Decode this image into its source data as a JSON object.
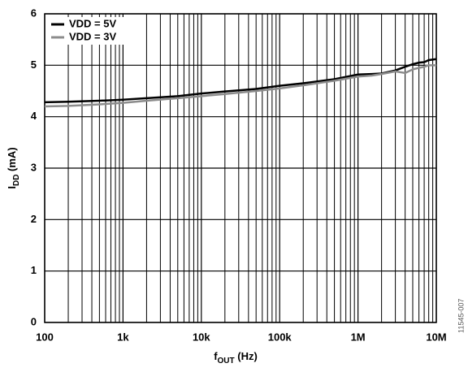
{
  "chart_data": {
    "type": "line",
    "xscale": "log",
    "grid": true,
    "legend": "upper left",
    "xlabel": {
      "main": "f",
      "sub": "OUT",
      "unit": " (Hz)"
    },
    "ylabel": {
      "main": "I",
      "sub": "DD",
      "unit": " (mA)"
    },
    "side_note": "11545-007",
    "xlim": [
      100,
      10000000
    ],
    "ylim": [
      0,
      6
    ],
    "xticks": [
      100,
      {
        "value": 1000,
        "label": "1k"
      },
      {
        "value": 10000,
        "label": "10k"
      },
      {
        "value": 100000,
        "label": "100k"
      },
      {
        "value": 1000000,
        "label": "1M"
      },
      {
        "value": 10000000,
        "label": "10M"
      }
    ],
    "xminorticks": [
      200,
      300,
      400,
      500,
      600,
      700,
      800,
      900,
      2000,
      3000,
      4000,
      5000,
      6000,
      7000,
      8000,
      9000,
      20000,
      30000,
      40000,
      50000,
      60000,
      70000,
      80000,
      90000,
      200000,
      300000,
      400000,
      500000,
      600000,
      700000,
      800000,
      900000,
      2000000,
      3000000,
      4000000,
      5000000,
      6000000,
      7000000,
      8000000,
      9000000
    ],
    "yticks": [
      0,
      1,
      2,
      3,
      4,
      5,
      6
    ],
    "x": [
      100,
      200,
      500,
      1000,
      2000,
      5000,
      10000,
      20000,
      50000,
      100000,
      200000,
      500000,
      1000000,
      1500000,
      2000000,
      3000000,
      4000000,
      5000000,
      6000000,
      7000000,
      8000000,
      10000000
    ],
    "series": [
      {
        "name": "VDD = 5V",
        "color": "#000000",
        "values": [
          4.28,
          4.29,
          4.31,
          4.33,
          4.36,
          4.4,
          4.45,
          4.49,
          4.54,
          4.6,
          4.65,
          4.73,
          4.82,
          4.83,
          4.84,
          4.9,
          4.97,
          5.02,
          5.05,
          5.06,
          5.1,
          5.12
        ]
      },
      {
        "name": "VDD = 3V",
        "color": "#8c8c8c",
        "values": [
          4.2,
          4.21,
          4.24,
          4.27,
          4.31,
          4.36,
          4.4,
          4.44,
          4.5,
          4.55,
          4.61,
          4.7,
          4.78,
          4.8,
          4.83,
          4.88,
          4.85,
          4.92,
          4.95,
          4.97,
          5.0,
          5.0
        ]
      }
    ]
  }
}
